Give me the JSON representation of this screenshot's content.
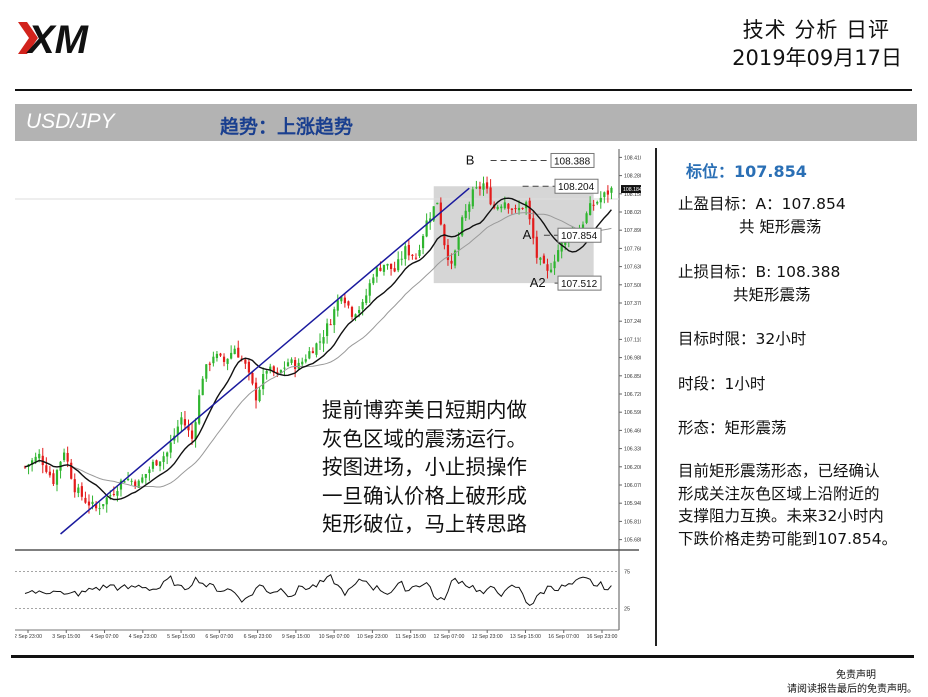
{
  "header": {
    "logo_text": "XM",
    "title": "技术 分析 日评",
    "date": "2019年09月17日"
  },
  "title_bar": {
    "pair": "USD/JPY",
    "trend": "趋势：上涨趋势"
  },
  "right_panel": {
    "pivot": "标位：107.854",
    "take_profit_1": "止盈目标：A：107.854",
    "take_profit_2": "共 矩形震荡",
    "stop_loss_1": "止损目标：B: 108.388",
    "stop_loss_2": "共矩形震荡",
    "time_limit": "目标时限：32小时",
    "timeframe": "时段：1小时",
    "pattern": "形态：矩形震荡",
    "description": [
      "目前矩形震荡形态，已经确认",
      "形成关注灰色区域上沿附近的",
      "支撑阻力互换。未来32小时内",
      "下跌价格走势可能到107.854。"
    ]
  },
  "overlay_text": [
    "提前博弈美日短期内做",
    "灰色区域的震荡运行。",
    "按图进场，小止损操作",
    "一旦确认价格上破形成",
    "矩形破位，马上转思路"
  ],
  "disclaimer": {
    "line1": "免责声明",
    "line2": "请阅读报告最后的免责声明。"
  },
  "colors": {
    "bull": "#2fb52f",
    "bear": "#e31b1b",
    "trendline": "#1a1a9e",
    "ma_fast": "#111111",
    "ma_slow": "#9a9a9a",
    "zone": "#d6d6d6",
    "header_bar": "#b3b3b3",
    "pivot_text": "#2a6fb5",
    "trend_text": "#1a3f8f"
  },
  "chart_data": {
    "type": "candlestick",
    "timeframe": "1小时",
    "ylim": [
      105.62,
      108.47
    ],
    "y_ticks": [
      "108.410",
      "108.280",
      "108.150",
      "108.020",
      "107.890",
      "107.760",
      "107.630",
      "107.500",
      "107.370",
      "107.240",
      "107.110",
      "106.980",
      "106.850",
      "106.720",
      "106.590",
      "106.460",
      "106.330",
      "106.200",
      "106.070",
      "105.940",
      "105.810",
      "105.680"
    ],
    "current_price_label": "108.184",
    "x_labels": [
      "2 Sep 23:00",
      "3 Sep 15:00",
      "4 Sep 07:00",
      "4 Sep 23:00",
      "5 Sep 15:00",
      "6 Sep 07:00",
      "6 Sep 23:00",
      "9 Sep 15:00",
      "10 Sep 07:00",
      "10 Sep 23:00",
      "11 Sep 15:00",
      "12 Sep 07:00",
      "12 Sep 23:00",
      "13 Sep 15:00",
      "16 Sep 07:00",
      "16 Sep 23:00"
    ],
    "levels": [
      {
        "name": "B",
        "value": 108.388
      },
      {
        "name": "",
        "value": 108.204
      },
      {
        "name": "A",
        "value": 107.854
      },
      {
        "name": "A2",
        "value": 107.512
      }
    ],
    "level_labels": [
      "108.388",
      "108.204",
      "107.854",
      "107.512"
    ],
    "rectangle": {
      "top": 108.204,
      "bottom": 107.512
    },
    "close_path": [
      [
        0,
        106.2
      ],
      [
        4,
        106.28
      ],
      [
        8,
        106.1
      ],
      [
        11,
        106.32
      ],
      [
        14,
        106.05
      ],
      [
        17,
        105.96
      ],
      [
        20,
        105.9
      ],
      [
        24,
        106.0
      ],
      [
        28,
        106.12
      ],
      [
        32,
        106.08
      ],
      [
        36,
        106.22
      ],
      [
        40,
        106.3
      ],
      [
        44,
        106.55
      ],
      [
        47,
        106.4
      ],
      [
        50,
        106.85
      ],
      [
        53,
        107.0
      ],
      [
        56,
        106.95
      ],
      [
        59,
        107.05
      ],
      [
        62,
        106.92
      ],
      [
        65,
        106.7
      ],
      [
        68,
        106.9
      ],
      [
        71,
        106.85
      ],
      [
        74,
        106.95
      ],
      [
        77,
        106.92
      ],
      [
        80,
        107.02
      ],
      [
        83,
        107.1
      ],
      [
        86,
        107.25
      ],
      [
        89,
        107.45
      ],
      [
        92,
        107.3
      ],
      [
        95,
        107.35
      ],
      [
        98,
        107.58
      ],
      [
        101,
        107.65
      ],
      [
        104,
        107.6
      ],
      [
        107,
        107.75
      ],
      [
        110,
        107.7
      ],
      [
        113,
        107.95
      ],
      [
        116,
        108.1
      ],
      [
        118,
        107.8
      ],
      [
        120,
        107.62
      ],
      [
        123,
        107.95
      ],
      [
        126,
        108.15
      ],
      [
        129,
        108.22
      ],
      [
        132,
        108.05
      ],
      [
        135,
        108.1
      ],
      [
        138,
        108.02
      ],
      [
        141,
        108.08
      ],
      [
        144,
        107.7
      ],
      [
        147,
        107.58
      ],
      [
        150,
        107.75
      ],
      [
        153,
        107.85
      ],
      [
        156,
        107.9
      ],
      [
        159,
        108.05
      ],
      [
        162,
        108.12
      ],
      [
        165,
        108.18
      ]
    ],
    "rsi": {
      "levels": [
        75,
        25
      ],
      "labels": [
        "75",
        "25"
      ],
      "ylim": [
        0,
        100
      ]
    }
  }
}
